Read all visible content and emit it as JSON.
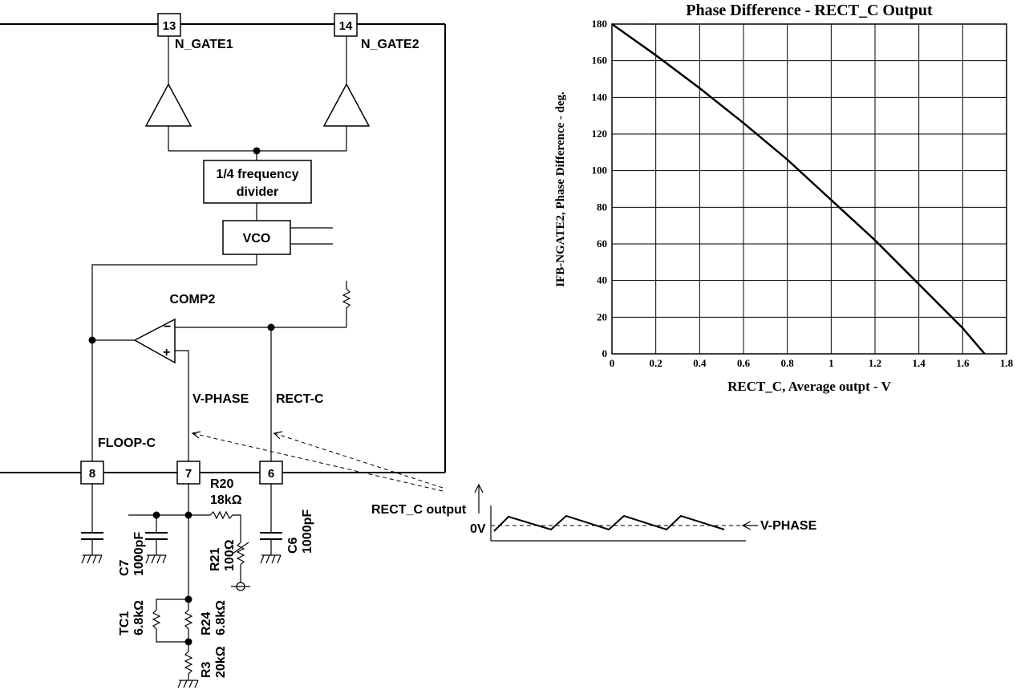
{
  "circuit": {
    "pins": {
      "p13": "13",
      "p14": "14",
      "p8": "8",
      "p7": "7",
      "p6": "6"
    },
    "labels": {
      "n_gate1": "N_GATE1",
      "n_gate2": "N_GATE2",
      "divider_line1": "1/4 frequency",
      "divider_line2": "divider",
      "vco": "VCO",
      "comp2": "COMP2",
      "v_phase": "V-PHASE",
      "rect_c": "RECT-C",
      "floop_c": "FLOOP-C",
      "minus": "−",
      "plus": "+"
    },
    "components": {
      "r20_name": "R20",
      "r20_value": "18kΩ",
      "c7_name": "C7",
      "c7_value": "1000pF",
      "r21_name": "R21",
      "r21_value": "100Ω",
      "c6_name": "C6",
      "c6_value": "1000pF",
      "tc1_name": "TC1",
      "tc1_value": "6.8kΩ",
      "r24_name": "R24",
      "r24_value": "6.8kΩ",
      "r3_name": "R3",
      "r3_value": "20kΩ"
    }
  },
  "waveform": {
    "title": "RECT_C output",
    "zero_label": "0V",
    "reference_label": "V-PHASE"
  },
  "chart_data": {
    "type": "line",
    "title": "Phase Difference - RECT_C Output",
    "xlabel": "RECT_C, Average outpt - V",
    "ylabel": "IFB-NGATE2, Phase Difference - deg.",
    "xlim": [
      0,
      1.8
    ],
    "ylim": [
      0,
      180
    ],
    "xticks": [
      "0",
      "0.2",
      "0.4",
      "0.6",
      "0.8",
      "1",
      "1.2",
      "1.4",
      "1.6",
      "1.8"
    ],
    "yticks": [
      "0",
      "20",
      "40",
      "60",
      "80",
      "100",
      "120",
      "140",
      "160",
      "180"
    ],
    "grid": true,
    "series": [
      {
        "x": [
          0,
          0.2,
          0.4,
          0.6,
          0.8,
          1.0,
          1.2,
          1.4,
          1.6,
          1.7
        ],
        "y": [
          180,
          163,
          145,
          126,
          106,
          84,
          62,
          38,
          14,
          0
        ]
      }
    ]
  }
}
